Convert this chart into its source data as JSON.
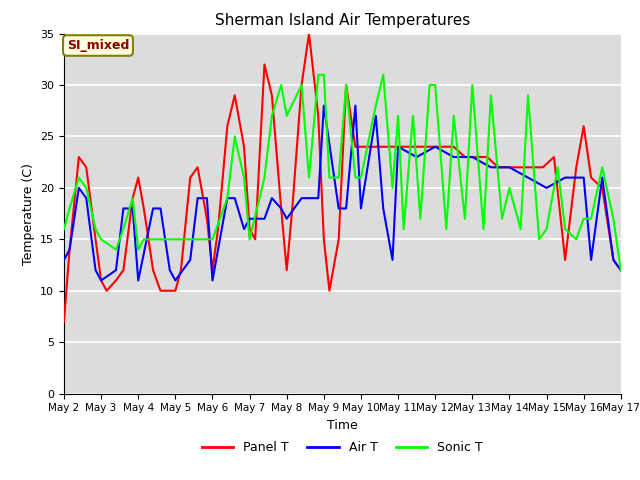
{
  "title": "Sherman Island Air Temperatures",
  "xlabel": "Time",
  "ylabel": "Temperature (C)",
  "ylim": [
    0,
    35
  ],
  "annotation_text": "SI_mixed",
  "background_color": "#dcdcdc",
  "grid_color": "#ffffff",
  "legend_labels": [
    "Panel T",
    "Air T",
    "Sonic T"
  ],
  "x_tick_labels": [
    "May 2",
    "May 3",
    "May 4",
    "May 5",
    "May 6",
    "May 7",
    "May 8",
    "May 9",
    "May 10",
    "May 11",
    "May 12",
    "May 13",
    "May 14",
    "May 15",
    "May 16",
    "May 17"
  ],
  "panel_t_x": [
    0,
    0.15,
    0.4,
    0.6,
    0.85,
    1.0,
    1.15,
    1.4,
    1.6,
    1.85,
    2.0,
    2.15,
    2.4,
    2.6,
    2.85,
    3.0,
    3.15,
    3.4,
    3.6,
    3.85,
    4.0,
    4.15,
    4.4,
    4.6,
    4.85,
    5.0,
    5.15,
    5.4,
    5.6,
    5.85,
    6.0,
    6.15,
    6.4,
    6.6,
    6.85,
    7.0,
    7.15,
    7.4,
    7.6,
    7.85,
    8.0,
    8.15,
    8.4,
    8.6,
    8.85,
    9.0,
    9.3,
    9.6,
    9.9,
    10.2,
    10.5,
    10.8,
    11.1,
    11.4,
    11.7,
    12.0,
    12.3,
    12.6,
    12.9,
    13.2,
    13.5,
    13.8,
    14.0,
    14.2,
    14.5,
    14.8,
    15.0
  ],
  "panel_t_y": [
    7,
    14,
    23,
    22,
    15,
    11,
    10,
    11,
    12,
    19,
    21,
    18,
    12,
    10,
    10,
    10,
    12,
    21,
    22,
    17,
    12,
    16,
    26,
    29,
    24,
    16,
    15,
    32,
    29,
    18,
    12,
    18,
    30,
    35,
    27,
    15,
    10,
    15,
    30,
    24,
    24,
    24,
    24,
    24,
    24,
    24,
    24,
    24,
    24,
    24,
    24,
    23,
    23,
    23,
    22,
    22,
    22,
    22,
    22,
    23,
    13,
    22,
    26,
    21,
    20,
    13,
    12
  ],
  "air_t_x": [
    0,
    0.15,
    0.4,
    0.6,
    0.85,
    1.0,
    1.4,
    1.6,
    1.85,
    2.0,
    2.4,
    2.6,
    2.85,
    3.0,
    3.4,
    3.6,
    3.85,
    4.0,
    4.4,
    4.6,
    4.85,
    5.0,
    5.4,
    5.6,
    5.85,
    6.0,
    6.4,
    6.6,
    6.85,
    7.0,
    7.4,
    7.6,
    7.85,
    8.0,
    8.4,
    8.6,
    8.85,
    9.0,
    9.5,
    10.0,
    10.5,
    11.0,
    11.5,
    12.0,
    12.5,
    13.0,
    13.5,
    14.0,
    14.2,
    14.5,
    14.8,
    15.0
  ],
  "air_t_y": [
    13,
    14,
    20,
    19,
    12,
    11,
    12,
    18,
    18,
    11,
    18,
    18,
    12,
    11,
    13,
    19,
    19,
    11,
    19,
    19,
    16,
    17,
    17,
    19,
    18,
    17,
    19,
    19,
    19,
    28,
    18,
    18,
    28,
    18,
    27,
    18,
    13,
    24,
    23,
    24,
    23,
    23,
    22,
    22,
    21,
    20,
    21,
    21,
    13,
    21,
    13,
    12
  ],
  "sonic_t_x": [
    0,
    0.15,
    0.4,
    0.6,
    0.85,
    1.0,
    1.4,
    1.6,
    1.85,
    2.0,
    2.15,
    2.4,
    2.6,
    2.85,
    3.0,
    3.4,
    3.6,
    3.85,
    4.0,
    4.4,
    4.6,
    4.85,
    5.0,
    5.4,
    5.6,
    5.85,
    6.0,
    6.4,
    6.6,
    6.85,
    7.0,
    7.15,
    7.4,
    7.6,
    7.85,
    8.0,
    8.4,
    8.6,
    8.85,
    9.0,
    9.15,
    9.4,
    9.6,
    9.85,
    10.0,
    10.3,
    10.5,
    10.8,
    11.0,
    11.3,
    11.5,
    11.8,
    12.0,
    12.3,
    12.5,
    12.8,
    13.0,
    13.3,
    13.5,
    13.8,
    14.0,
    14.2,
    14.5,
    14.8,
    15.0
  ],
  "sonic_t_y": [
    16,
    18,
    21,
    20,
    16,
    15,
    14,
    16,
    19,
    14,
    15,
    15,
    15,
    15,
    15,
    15,
    15,
    15,
    15,
    19,
    25,
    21,
    15,
    21,
    27,
    30,
    27,
    30,
    21,
    31,
    31,
    21,
    21,
    30,
    21,
    21,
    28,
    31,
    20,
    27,
    16,
    27,
    17,
    30,
    30,
    16,
    27,
    17,
    30,
    16,
    29,
    17,
    20,
    16,
    29,
    15,
    16,
    22,
    16,
    15,
    17,
    17,
    22,
    17,
    12
  ]
}
